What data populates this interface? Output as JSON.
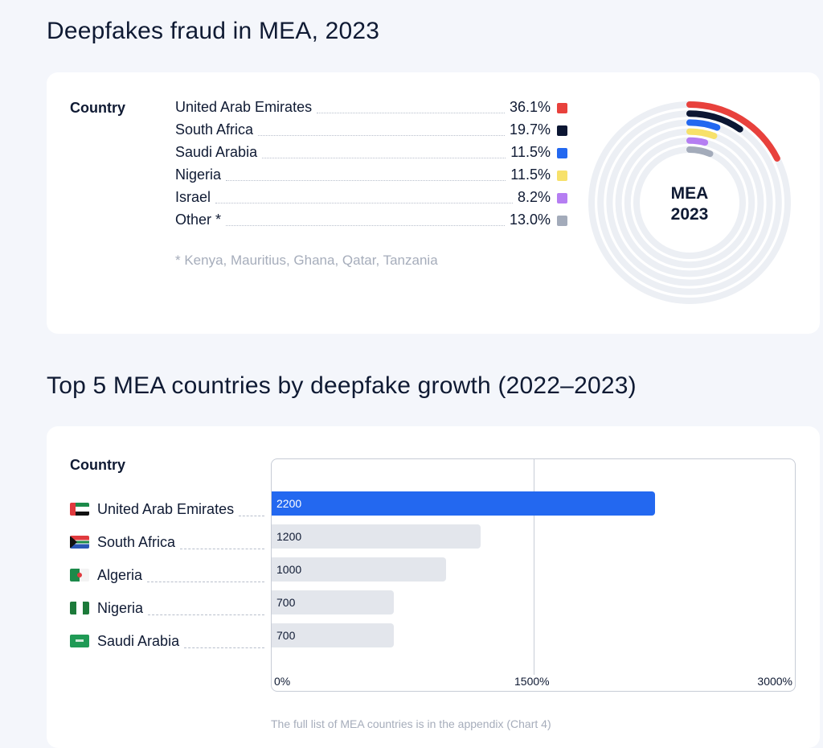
{
  "chart_data": [
    {
      "type": "radial-bar",
      "title": "Deepfakes fraud in MEA, 2023",
      "legend_title": "Country",
      "center_label": [
        "MEA",
        "2023"
      ],
      "categories": [
        "United Arab Emirates",
        "South Africa",
        "Saudi Arabia",
        "Nigeria",
        "Israel",
        "Other *"
      ],
      "values": [
        36.1,
        19.7,
        11.5,
        11.5,
        8.2,
        13.0
      ],
      "labels": [
        "36.1%",
        "19.7%",
        "11.5%",
        "11.5%",
        "8.2%",
        "13.0%"
      ],
      "colors": [
        "#e8413c",
        "#0b1633",
        "#2368f0",
        "#f7e16a",
        "#b57ef2",
        "#a3abba"
      ],
      "footnote": "*  Kenya, Mauritius, Ghana, Qatar, Tanzania"
    },
    {
      "type": "bar",
      "orientation": "horizontal",
      "title": "Top 5 MEA countries by deepfake growth (2022–2023)",
      "legend_title": "Country",
      "categories": [
        "United Arab Emirates",
        "South Africa",
        "Algeria",
        "Nigeria",
        "Saudi Arabia"
      ],
      "values": [
        2200,
        1200,
        1000,
        700,
        700
      ],
      "xlim": [
        0,
        3000
      ],
      "xticks": [
        "0%",
        "1500%",
        "3000%"
      ],
      "highlight_color": "#2368f0",
      "bar_color": "#e3e6ec",
      "footnote": "The full list of MEA countries is in the appendix (Chart 4)"
    }
  ]
}
